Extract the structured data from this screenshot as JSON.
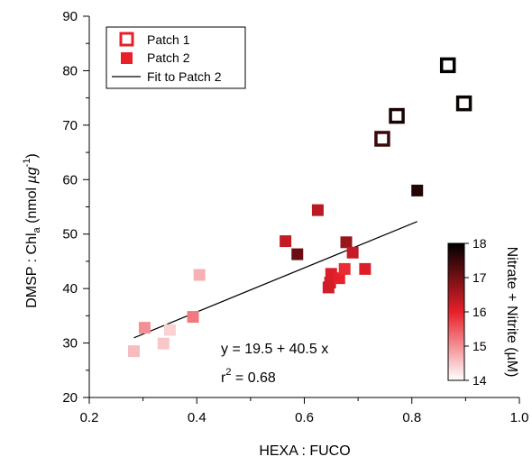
{
  "chart_data": {
    "type": "scatter",
    "xlabel": "HEXA : FUCO",
    "ylabel": {
      "main": "DMSP : Chl",
      "sub": "a",
      "unit_pre": " (nmol ",
      "unit_mu": "µg",
      "unit_sup": "-1",
      "unit_post": ")"
    },
    "xlim": [
      0.2,
      1.0
    ],
    "ylim": [
      20,
      90
    ],
    "xticks": [
      "0.2",
      "0.4",
      "0.6",
      "0.8",
      "1.0"
    ],
    "yticks": [
      "20",
      "30",
      "40",
      "50",
      "60",
      "70",
      "80",
      "90"
    ],
    "series": [
      {
        "name": "Patch 1",
        "marker": "open-square",
        "points": [
          {
            "x": 0.745,
            "y": 67.5,
            "c": 17.5
          },
          {
            "x": 0.772,
            "y": 71.7,
            "c": 17.8
          },
          {
            "x": 0.867,
            "y": 81.0,
            "c": 18.0
          },
          {
            "x": 0.897,
            "y": 74.0,
            "c": 17.9
          }
        ]
      },
      {
        "name": "Patch 2",
        "marker": "filled-square",
        "points": [
          {
            "x": 0.283,
            "y": 28.5,
            "c": 14.6
          },
          {
            "x": 0.303,
            "y": 32.8,
            "c": 15.0
          },
          {
            "x": 0.338,
            "y": 29.9,
            "c": 14.5
          },
          {
            "x": 0.35,
            "y": 32.4,
            "c": 14.4
          },
          {
            "x": 0.393,
            "y": 34.8,
            "c": 15.2
          },
          {
            "x": 0.405,
            "y": 42.5,
            "c": 14.7
          },
          {
            "x": 0.565,
            "y": 48.7,
            "c": 16.3
          },
          {
            "x": 0.587,
            "y": 46.3,
            "c": 17.1
          },
          {
            "x": 0.625,
            "y": 54.4,
            "c": 16.4
          },
          {
            "x": 0.645,
            "y": 40.2,
            "c": 16.2
          },
          {
            "x": 0.648,
            "y": 41.1,
            "c": 16.2
          },
          {
            "x": 0.65,
            "y": 42.7,
            "c": 16.1
          },
          {
            "x": 0.665,
            "y": 41.9,
            "c": 16.0
          },
          {
            "x": 0.675,
            "y": 43.6,
            "c": 15.9
          },
          {
            "x": 0.678,
            "y": 48.5,
            "c": 16.7
          },
          {
            "x": 0.69,
            "y": 46.6,
            "c": 16.3
          },
          {
            "x": 0.713,
            "y": 43.6,
            "c": 16.1
          },
          {
            "x": 0.81,
            "y": 58.0,
            "c": 17.7
          }
        ]
      }
    ],
    "fit": {
      "name": "Fit to Patch 2",
      "intercept": 19.5,
      "slope": 40.5,
      "x_range": [
        0.283,
        0.81
      ]
    },
    "colorbar": {
      "label": "Nitrate + Nitrite (µM)",
      "range": [
        14,
        18
      ],
      "ticks": [
        "14",
        "15",
        "16",
        "17",
        "18"
      ],
      "colors": {
        "low": "#ffffff",
        "mid": "#e8202a",
        "high": "#000000"
      }
    },
    "annotations": {
      "equation": "y = 19.5 + 40.5 x",
      "r2_prefix": "r",
      "r2_sup": "2",
      "r2_value": " = 0.68"
    },
    "legend_position": "top-left",
    "grid": false
  },
  "legend": {
    "patch1_label": "Patch 1",
    "patch2_label": "Patch 2",
    "fit_label": "Fit to Patch 2",
    "patch1_color": "#e8202a",
    "patch2_color": "#e8202a"
  }
}
